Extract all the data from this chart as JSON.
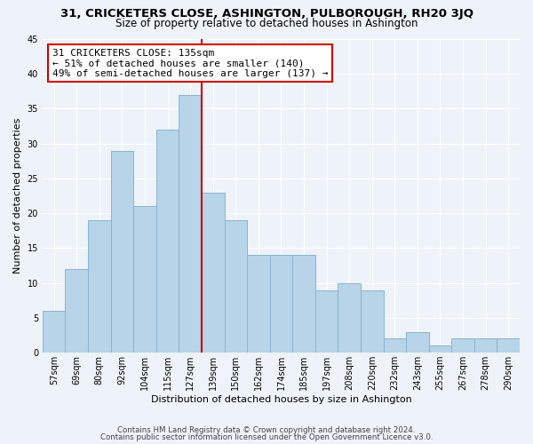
{
  "title": "31, CRICKETERS CLOSE, ASHINGTON, PULBOROUGH, RH20 3JQ",
  "subtitle": "Size of property relative to detached houses in Ashington",
  "xlabel": "Distribution of detached houses by size in Ashington",
  "ylabel": "Number of detached properties",
  "bar_labels": [
    "57sqm",
    "69sqm",
    "80sqm",
    "92sqm",
    "104sqm",
    "115sqm",
    "127sqm",
    "139sqm",
    "150sqm",
    "162sqm",
    "174sqm",
    "185sqm",
    "197sqm",
    "208sqm",
    "220sqm",
    "232sqm",
    "243sqm",
    "255sqm",
    "267sqm",
    "278sqm",
    "290sqm"
  ],
  "bar_heights": [
    6,
    12,
    19,
    29,
    21,
    32,
    37,
    23,
    19,
    14,
    14,
    14,
    9,
    10,
    9,
    2,
    3,
    1,
    2,
    2,
    2
  ],
  "bar_color": "#b8d4e8",
  "bar_edge_color": "#8ab4d0",
  "vline_color": "#cc0000",
  "annotation_title": "31 CRICKETERS CLOSE: 135sqm",
  "annotation_line1": "← 51% of detached houses are smaller (140)",
  "annotation_line2": "49% of semi-detached houses are larger (137) →",
  "annotation_box_color": "#ffffff",
  "annotation_box_edge": "#cc0000",
  "ylim": [
    0,
    45
  ],
  "yticks": [
    0,
    5,
    10,
    15,
    20,
    25,
    30,
    35,
    40,
    45
  ],
  "footer1": "Contains HM Land Registry data © Crown copyright and database right 2024.",
  "footer2": "Contains public sector information licensed under the Open Government Licence v3.0.",
  "background_color": "#eef3f9",
  "grid_color": "#ffffff",
  "title_fontsize": 9.5,
  "subtitle_fontsize": 8.5,
  "ylabel_fontsize": 8,
  "xlabel_fontsize": 8,
  "tick_fontsize": 7,
  "footer_fontsize": 6.2,
  "annot_fontsize": 8
}
